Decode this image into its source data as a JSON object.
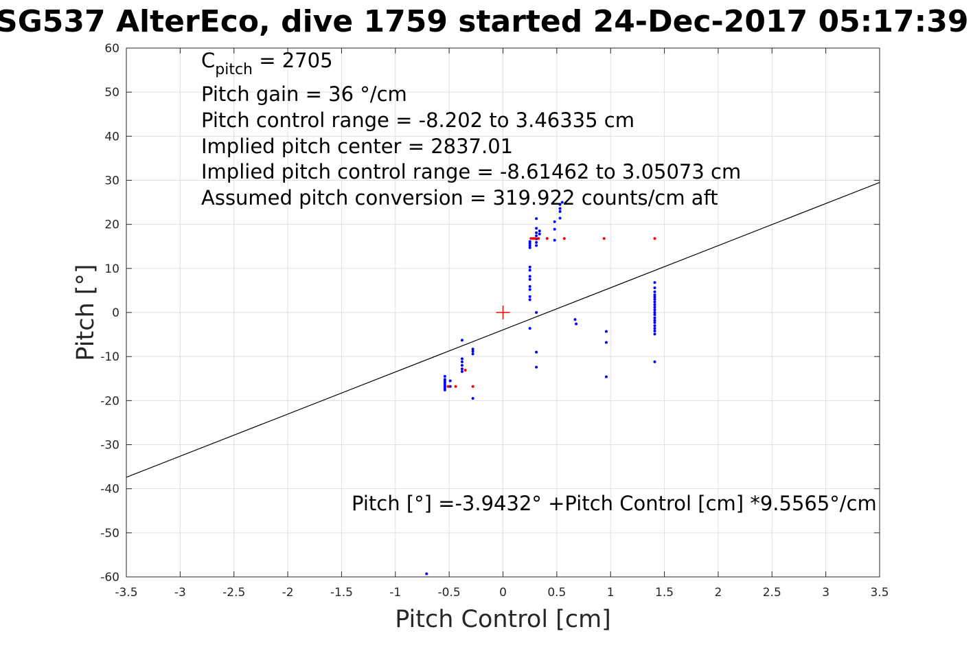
{
  "title": "SG537 AlterEco, dive 1759 started 24-Dec-2017 05:17:39",
  "colors": {
    "data_points": "#0000ff",
    "highlight_points": "#ff0000",
    "fit_line": "#000000",
    "grid": "#e0e0e0"
  },
  "annotations": {
    "c_pitch_prefix": "C",
    "c_pitch_sub": "pitch",
    "c_pitch_value": " = 2705",
    "pitch_gain": "Pitch gain = 36 °/cm",
    "pitch_control_range": "Pitch control range = -8.202 to 3.46335 cm",
    "implied_center": "Implied pitch center = 2837.01",
    "implied_range": "Implied pitch control range = -8.61462 to 3.05073 cm",
    "assumed_conversion": "Assumed pitch conversion = 319.922 counts/cm aft",
    "fit_equation": "Pitch [°] =-3.9432° +Pitch Control [cm] *9.5565°/cm"
  },
  "chart_data": {
    "type": "scatter",
    "xlabel": "Pitch Control [cm]",
    "ylabel": "Pitch [°]",
    "xlim": [
      -3.5,
      3.5
    ],
    "ylim": [
      -60,
      60
    ],
    "xticks": [
      -3.5,
      -3,
      -2.5,
      -2,
      -1.5,
      -1,
      -0.5,
      0,
      0.5,
      1,
      1.5,
      2,
      2.5,
      3,
      3.5
    ],
    "xtick_labels": [
      "-3.5",
      "-3",
      "-2.5",
      "-2",
      "-1.5",
      "-1",
      "-0.5",
      "0",
      "0.5",
      "1",
      "1.5",
      "2",
      "2.5",
      "3",
      "3.5"
    ],
    "yticks": [
      60,
      50,
      40,
      30,
      20,
      10,
      0,
      -10,
      -20,
      -30,
      -40,
      -50,
      -60
    ],
    "ytick_labels": [
      "60",
      "50",
      "40",
      "30",
      "20",
      "10",
      "0",
      "-10",
      "-20",
      "-30",
      "-40",
      "-50",
      "-60"
    ],
    "grid": true,
    "fit_line": {
      "intercept": -3.9432,
      "slope": 9.5565
    },
    "center_marker": {
      "x": 0,
      "y": 0
    },
    "series": [
      {
        "color": "#0000ff",
        "points": [
          [
            -0.54,
            -14.5
          ],
          [
            -0.54,
            -15.2
          ],
          [
            -0.54,
            -15.6
          ],
          [
            -0.54,
            -16.0
          ],
          [
            -0.54,
            -16.4
          ],
          [
            -0.54,
            -16.8
          ],
          [
            -0.54,
            -17.2
          ],
          [
            -0.54,
            -17.6
          ],
          [
            -0.49,
            -15.5
          ],
          [
            -0.49,
            -16.8
          ],
          [
            -0.38,
            -6.3
          ],
          [
            -0.38,
            -10.5
          ],
          [
            -0.38,
            -11.2
          ],
          [
            -0.38,
            -12.0
          ],
          [
            -0.38,
            -12.8
          ],
          [
            -0.38,
            -13.4
          ],
          [
            -0.28,
            -8.3
          ],
          [
            -0.28,
            -8.8
          ],
          [
            -0.28,
            -9.4
          ],
          [
            -0.28,
            -19.5
          ],
          [
            0.25,
            14.7
          ],
          [
            0.25,
            15.2
          ],
          [
            0.25,
            15.7
          ],
          [
            0.25,
            16.1
          ],
          [
            0.25,
            10.3
          ],
          [
            0.25,
            9.6
          ],
          [
            0.25,
            8.2
          ],
          [
            0.25,
            7.5
          ],
          [
            0.25,
            5.9
          ],
          [
            0.25,
            5.2
          ],
          [
            0.25,
            3.6
          ],
          [
            0.25,
            2.9
          ],
          [
            0.25,
            -3.6
          ],
          [
            0.31,
            21.3
          ],
          [
            0.31,
            19.1
          ],
          [
            0.31,
            18.1
          ],
          [
            0.31,
            17.4
          ],
          [
            0.31,
            16.7
          ],
          [
            0.31,
            15.9
          ],
          [
            0.31,
            15.2
          ],
          [
            0.31,
            0.0
          ],
          [
            0.31,
            -9.0
          ],
          [
            0.31,
            -12.4
          ],
          [
            0.34,
            18.5
          ],
          [
            0.34,
            17.8
          ],
          [
            0.48,
            20.6
          ],
          [
            0.48,
            18.9
          ],
          [
            0.48,
            16.4
          ],
          [
            0.53,
            24.5
          ],
          [
            0.53,
            23.6
          ],
          [
            0.53,
            22.9
          ],
          [
            0.53,
            21.4
          ],
          [
            0.55,
            25.0
          ],
          [
            0.67,
            -1.6
          ],
          [
            0.68,
            -2.6
          ],
          [
            0.96,
            -4.3
          ],
          [
            0.96,
            -6.8
          ],
          [
            0.96,
            -14.6
          ],
          [
            1.41,
            6.8
          ],
          [
            1.41,
            5.6
          ],
          [
            1.41,
            4.7
          ],
          [
            1.41,
            4.0
          ],
          [
            1.41,
            3.5
          ],
          [
            1.41,
            3.0
          ],
          [
            1.41,
            2.4
          ],
          [
            1.41,
            1.8
          ],
          [
            1.41,
            1.2
          ],
          [
            1.41,
            0.6
          ],
          [
            1.41,
            0.0
          ],
          [
            1.41,
            -0.5
          ],
          [
            1.41,
            -1.2
          ],
          [
            1.41,
            -1.8
          ],
          [
            1.41,
            -2.3
          ],
          [
            1.41,
            -3.0
          ],
          [
            1.41,
            -3.6
          ],
          [
            1.41,
            -4.2
          ],
          [
            1.41,
            -4.9
          ],
          [
            1.41,
            -11.2
          ],
          [
            -0.71,
            -59.3
          ]
        ]
      },
      {
        "color": "#ff0000",
        "points": [
          [
            -0.51,
            -16.8
          ],
          [
            -0.44,
            -16.8
          ],
          [
            -0.35,
            -13.1
          ],
          [
            -0.28,
            -16.8
          ],
          [
            0.26,
            16.8
          ],
          [
            0.28,
            16.8
          ],
          [
            0.3,
            16.8
          ],
          [
            0.33,
            16.8
          ],
          [
            0.41,
            16.8
          ],
          [
            0.57,
            16.8
          ],
          [
            0.94,
            16.8
          ],
          [
            1.41,
            16.8
          ]
        ]
      }
    ]
  }
}
